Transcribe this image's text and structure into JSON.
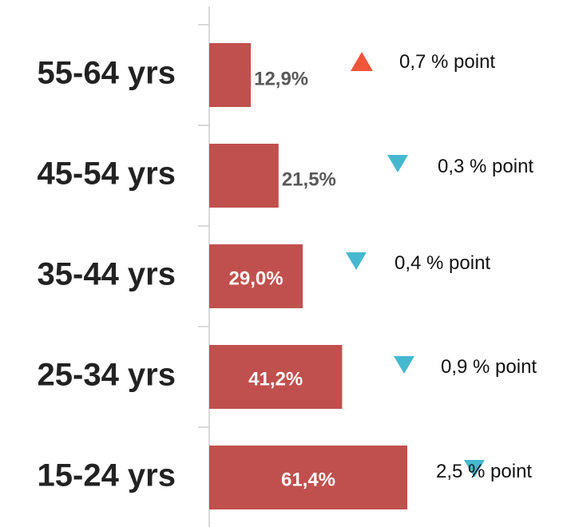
{
  "chart_data": {
    "type": "hbar",
    "categories": [
      "55-64 yrs",
      "45-54 yrs",
      "35-44 yrs",
      "25-34 yrs",
      "15-24 yrs"
    ],
    "values": [
      12.9,
      21.5,
      29.0,
      41.2,
      61.4
    ],
    "value_labels": [
      "12,9%",
      "21,5%",
      "29,0%",
      "41,2%",
      "61,4%"
    ],
    "color": "#c0504d",
    "changes": [
      {
        "label": "0,7 % point",
        "direction": "up"
      },
      {
        "label": "0,3 % point",
        "direction": "down"
      },
      {
        "label": "0,4 % point",
        "direction": "down"
      },
      {
        "label": "0,9 % point",
        "direction": "down"
      },
      {
        "label": "2,5 % point",
        "direction": "down"
      }
    ],
    "up_color": "#f0553a",
    "down_color": "#45b8d0"
  }
}
